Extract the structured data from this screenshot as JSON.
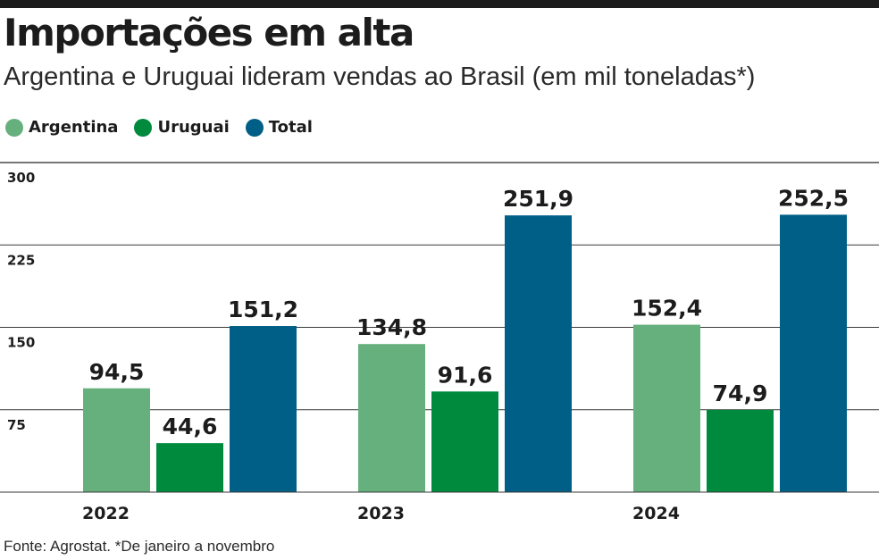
{
  "chart_data": {
    "type": "bar",
    "title": "Importações em alta",
    "subtitle": "Argentina e Uruguai lideram vendas ao Brasil (em mil toneladas*)",
    "categories": [
      "2022",
      "2023",
      "2024"
    ],
    "series": [
      {
        "name": "Argentina",
        "color": "#66b07e",
        "values": [
          94.5,
          134.8,
          152.4
        ],
        "labels": [
          "94,5",
          "134,8",
          "152,4"
        ]
      },
      {
        "name": "Uruguai",
        "color": "#008a3e",
        "values": [
          44.6,
          91.6,
          74.9
        ],
        "labels": [
          "44,6",
          "91,6",
          "74,9"
        ]
      },
      {
        "name": "Total",
        "color": "#005f86",
        "values": [
          151.2,
          251.9,
          252.5
        ],
        "labels": [
          "151,2",
          "251,9",
          "252,5"
        ]
      }
    ],
    "ylim": [
      0,
      300
    ],
    "yticks": [
      75,
      150,
      225,
      300
    ],
    "grid": true,
    "legend": "top-left",
    "source": "Fonte: Agrostat. *De janeiro a novembro"
  }
}
